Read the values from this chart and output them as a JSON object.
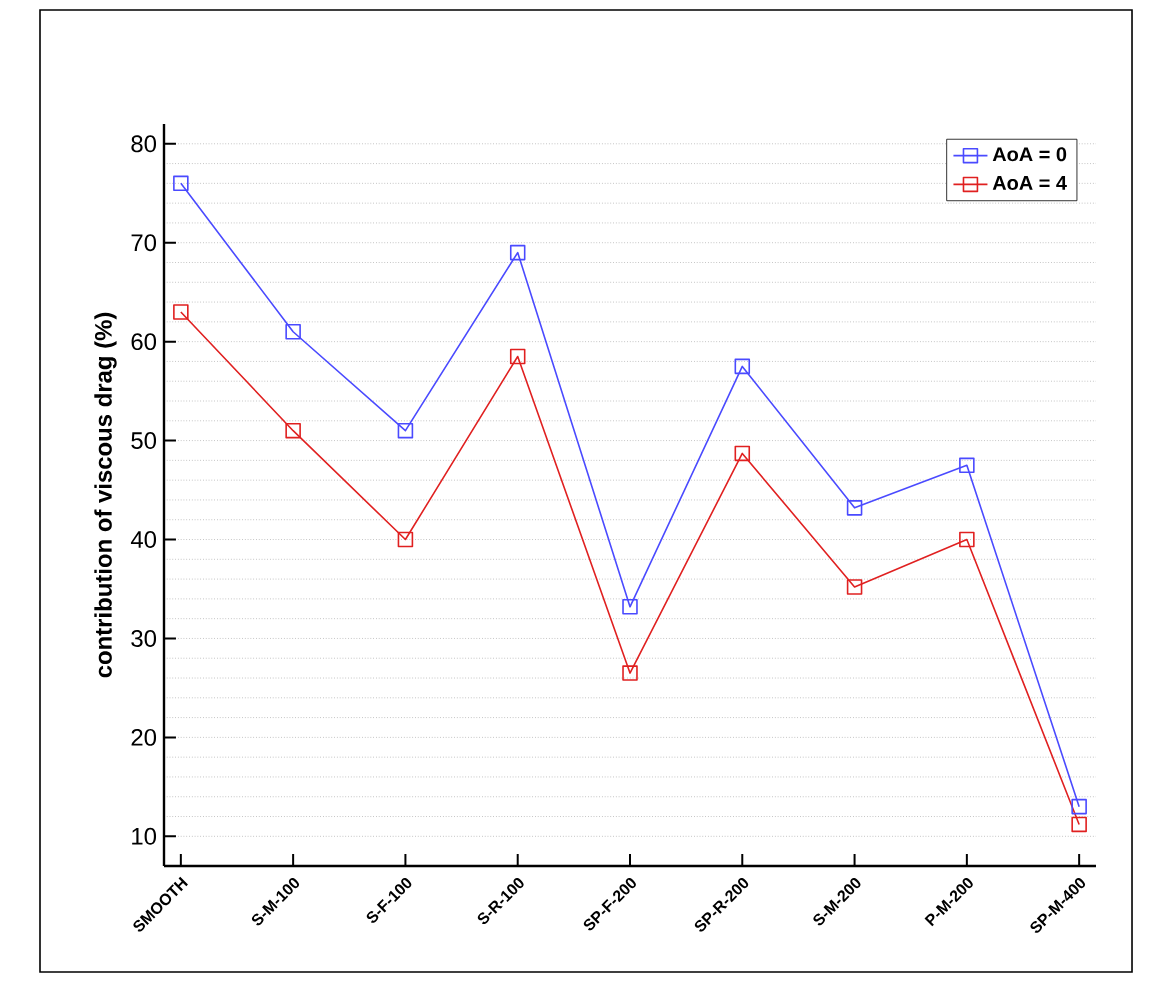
{
  "chart_data": {
    "type": "line",
    "ylabel": "contribution of viscous drag (%)",
    "categories": [
      "SMOOTH",
      "S-M-100",
      "S-F-100",
      "S-R-100",
      "SP-F-200",
      "SP-R-200",
      "S-M-200",
      "P-M-200",
      "SP-M-400"
    ],
    "series": [
      {
        "name": "AoA = 0",
        "color": "#4a4aff",
        "values": [
          76,
          61,
          51,
          69,
          33.2,
          57.5,
          43.2,
          47.5,
          13
        ]
      },
      {
        "name": "AoA = 4",
        "color": "#e02020",
        "values": [
          63,
          51,
          40,
          58.5,
          26.5,
          48.7,
          35.2,
          40,
          11.2
        ]
      }
    ],
    "ylim": [
      7,
      82
    ],
    "yticks": [
      10,
      20,
      30,
      40,
      50,
      60,
      70,
      80
    ],
    "grid": "y",
    "legend": "top right",
    "marker": "square",
    "line_style": "solid"
  }
}
